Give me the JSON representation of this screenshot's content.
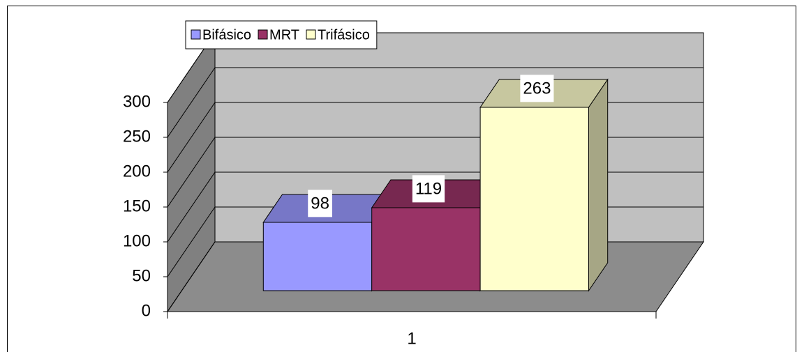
{
  "chart_data": {
    "type": "bar",
    "categories": [
      "1"
    ],
    "series": [
      {
        "name": "Bifásico",
        "color": "#9999ff",
        "values": [
          98
        ]
      },
      {
        "name": "MRT",
        "color": "#993366",
        "values": [
          119
        ]
      },
      {
        "name": "Trifásico",
        "color": "#ffffcc",
        "values": [
          263
        ]
      }
    ],
    "ylim": [
      0,
      300
    ],
    "yticks": [
      0,
      50,
      100,
      150,
      200,
      250,
      300
    ],
    "grid": true,
    "legend": "top"
  }
}
